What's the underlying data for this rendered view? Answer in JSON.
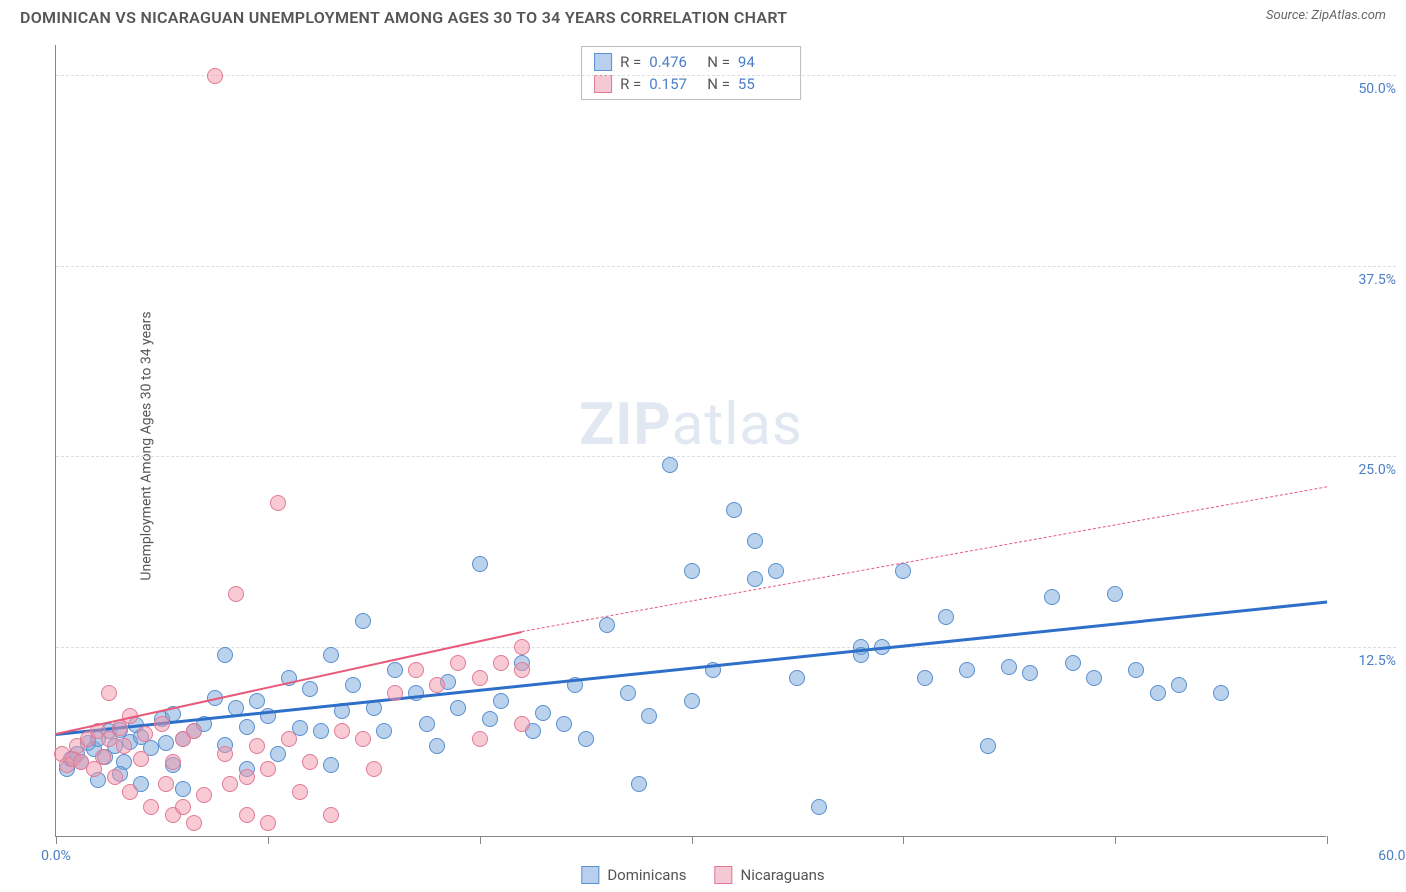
{
  "header": {
    "title": "DOMINICAN VS NICARAGUAN UNEMPLOYMENT AMONG AGES 30 TO 34 YEARS CORRELATION CHART",
    "source": "Source: ZipAtlas.com"
  },
  "chart": {
    "type": "scatter",
    "ylabel": "Unemployment Among Ages 30 to 34 years",
    "xlim": [
      0,
      60
    ],
    "ylim": [
      0,
      52
    ],
    "xtick_positions": [
      0,
      10,
      20,
      30,
      40,
      50,
      60
    ],
    "xtick_labels": {
      "first": "0.0%",
      "last": "60.0%"
    },
    "ytick_positions": [
      12.5,
      25.0,
      37.5,
      50.0
    ],
    "ytick_labels": [
      "12.5%",
      "25.0%",
      "37.5%",
      "50.0%"
    ],
    "grid_color": "#dddddd",
    "axis_color": "#888888",
    "background_color": "#ffffff",
    "label_color": "#4a7ec7",
    "point_radius": 8,
    "point_opacity": 0.55,
    "series": [
      {
        "name": "Dominicans",
        "color_fill": "rgba(120,165,220,0.5)",
        "color_stroke": "#5a8fd0",
        "swatch_fill": "#b8d0ee",
        "swatch_stroke": "#5a8fd0",
        "r": "0.476",
        "n": "94",
        "trend": {
          "x1": 0,
          "y1": 6.8,
          "x2": 60,
          "y2": 15.5,
          "color": "#2e6fc9",
          "width": 3,
          "dash": "solid"
        },
        "points": [
          [
            0.5,
            5.5
          ],
          [
            0.7,
            6.2
          ],
          [
            1.0,
            6.5
          ],
          [
            1.2,
            6.0
          ],
          [
            1.5,
            7.2
          ],
          [
            1.8,
            6.8
          ],
          [
            2.0,
            7.5
          ],
          [
            2.3,
            6.3
          ],
          [
            2.5,
            8.0
          ],
          [
            2.8,
            7.0
          ],
          [
            3.0,
            8.1
          ],
          [
            3.2,
            6.0
          ],
          [
            3.5,
            7.3
          ],
          [
            3.8,
            8.4
          ],
          [
            4.0,
            7.6
          ],
          [
            4.5,
            6.9
          ],
          [
            5.0,
            8.8
          ],
          [
            5.2,
            7.2
          ],
          [
            5.5,
            9.1
          ],
          [
            6.0,
            7.5
          ],
          [
            6.5,
            8.0
          ],
          [
            7.0,
            8.5
          ],
          [
            7.5,
            10.2
          ],
          [
            8.0,
            7.1
          ],
          [
            8.0,
            13.0
          ],
          [
            8.5,
            9.5
          ],
          [
            9.0,
            8.3
          ],
          [
            9.0,
            5.5
          ],
          [
            9.5,
            10.0
          ],
          [
            10.0,
            9.0
          ],
          [
            10.5,
            6.5
          ],
          [
            11.0,
            11.5
          ],
          [
            11.5,
            8.2
          ],
          [
            12.0,
            10.8
          ],
          [
            12.5,
            8.0
          ],
          [
            13.0,
            5.8
          ],
          [
            13.5,
            9.3
          ],
          [
            14.0,
            11.0
          ],
          [
            14.5,
            15.2
          ],
          [
            15.0,
            9.5
          ],
          [
            15.5,
            8.0
          ],
          [
            16.0,
            12.0
          ],
          [
            17.0,
            10.5
          ],
          [
            17.5,
            8.5
          ],
          [
            18.0,
            7.0
          ],
          [
            18.5,
            11.2
          ],
          [
            19.0,
            9.5
          ],
          [
            20.0,
            19.0
          ],
          [
            20.5,
            8.8
          ],
          [
            21.0,
            10.0
          ],
          [
            22.0,
            12.5
          ],
          [
            22.5,
            8.0
          ],
          [
            23.0,
            9.2
          ],
          [
            24.0,
            8.5
          ],
          [
            24.5,
            11.0
          ],
          [
            25.0,
            7.5
          ],
          [
            26.0,
            15.0
          ],
          [
            27.0,
            10.5
          ],
          [
            27.5,
            4.5
          ],
          [
            28.0,
            9.0
          ],
          [
            29.0,
            25.5
          ],
          [
            30.0,
            18.5
          ],
          [
            30.0,
            10.0
          ],
          [
            31.0,
            12.0
          ],
          [
            32.0,
            22.5
          ],
          [
            33.0,
            18.0
          ],
          [
            33.0,
            20.5
          ],
          [
            34.0,
            18.5
          ],
          [
            35.0,
            11.5
          ],
          [
            36.0,
            3.0
          ],
          [
            38.0,
            13.5
          ],
          [
            38.0,
            13.0
          ],
          [
            39.0,
            13.5
          ],
          [
            40.0,
            18.5
          ],
          [
            41.0,
            11.5
          ],
          [
            42.0,
            15.5
          ],
          [
            43.0,
            12.0
          ],
          [
            44.0,
            7.0
          ],
          [
            45.0,
            12.2
          ],
          [
            46.0,
            11.8
          ],
          [
            47.0,
            16.8
          ],
          [
            48.0,
            12.5
          ],
          [
            49.0,
            11.5
          ],
          [
            50.0,
            17.0
          ],
          [
            51.0,
            12.0
          ],
          [
            52.0,
            10.5
          ],
          [
            53.0,
            11.0
          ],
          [
            55.0,
            10.5
          ],
          [
            2.0,
            4.8
          ],
          [
            3.0,
            5.2
          ],
          [
            4.0,
            4.5
          ],
          [
            5.5,
            5.8
          ],
          [
            6.0,
            4.2
          ],
          [
            13.0,
            13.0
          ]
        ]
      },
      {
        "name": "Nicaraguans",
        "color_fill": "rgba(240,150,170,0.5)",
        "color_stroke": "#e27a95",
        "swatch_fill": "#f5c8d5",
        "swatch_stroke": "#e27a95",
        "r": "0.157",
        "n": "55",
        "trend": {
          "x1": 0,
          "y1": 6.8,
          "x2": 22,
          "y2": 13.5,
          "color": "#e85a7a",
          "width": 2,
          "dash": "solid"
        },
        "trend_ext": {
          "x1": 22,
          "y1": 13.5,
          "x2": 60,
          "y2": 23.0,
          "color": "#e85a7a",
          "width": 1,
          "dash": "dashed"
        },
        "points": [
          [
            0.3,
            6.5
          ],
          [
            0.5,
            5.8
          ],
          [
            0.8,
            6.2
          ],
          [
            1.0,
            7.0
          ],
          [
            1.2,
            6.0
          ],
          [
            1.5,
            7.5
          ],
          [
            1.8,
            5.5
          ],
          [
            2.0,
            8.0
          ],
          [
            2.2,
            6.3
          ],
          [
            2.5,
            10.5
          ],
          [
            2.5,
            7.5
          ],
          [
            2.8,
            5.0
          ],
          [
            3.0,
            8.2
          ],
          [
            3.2,
            7.0
          ],
          [
            3.5,
            4.0
          ],
          [
            3.5,
            9.0
          ],
          [
            4.0,
            6.2
          ],
          [
            4.2,
            7.8
          ],
          [
            4.5,
            3.0
          ],
          [
            5.0,
            8.5
          ],
          [
            5.2,
            4.5
          ],
          [
            5.5,
            2.5
          ],
          [
            5.5,
            6.0
          ],
          [
            6.0,
            7.5
          ],
          [
            6.0,
            3.0
          ],
          [
            6.5,
            2.0
          ],
          [
            6.5,
            8.0
          ],
          [
            7.0,
            3.8
          ],
          [
            7.5,
            51.0
          ],
          [
            8.0,
            6.5
          ],
          [
            8.2,
            4.5
          ],
          [
            8.5,
            17.0
          ],
          [
            9.0,
            5.0
          ],
          [
            9.0,
            2.5
          ],
          [
            9.5,
            7.0
          ],
          [
            10.0,
            5.5
          ],
          [
            10.0,
            2.0
          ],
          [
            10.5,
            23.0
          ],
          [
            11.0,
            7.5
          ],
          [
            11.5,
            4.0
          ],
          [
            12.0,
            6.0
          ],
          [
            13.0,
            2.5
          ],
          [
            13.5,
            8.0
          ],
          [
            14.5,
            7.5
          ],
          [
            15.0,
            5.5
          ],
          [
            16.0,
            10.5
          ],
          [
            17.0,
            12.0
          ],
          [
            18.0,
            11.0
          ],
          [
            19.0,
            12.5
          ],
          [
            20.0,
            11.5
          ],
          [
            20.0,
            7.5
          ],
          [
            21.0,
            12.5
          ],
          [
            22.0,
            12.0
          ],
          [
            22.0,
            8.5
          ],
          [
            22.0,
            13.5
          ]
        ]
      }
    ],
    "legend": {
      "items": [
        "Dominicans",
        "Nicaraguans"
      ]
    },
    "watermark": {
      "zip": "ZIP",
      "atlas": "atlas"
    }
  }
}
